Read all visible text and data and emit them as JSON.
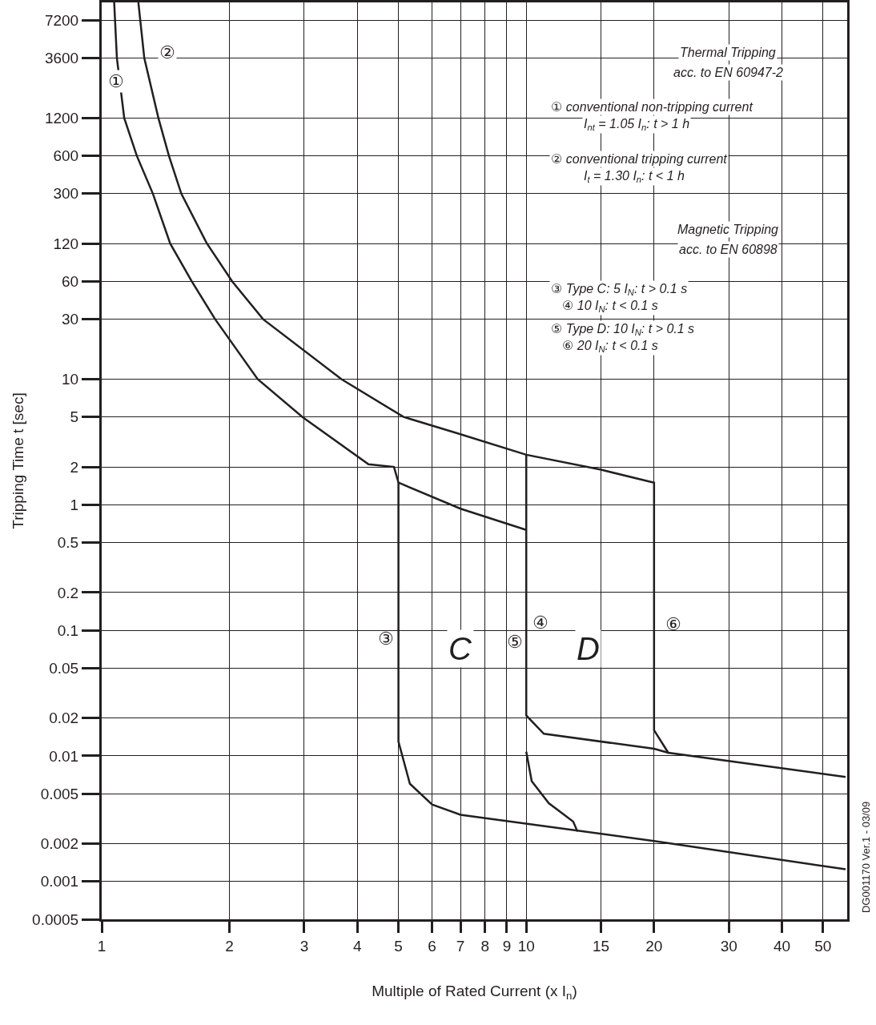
{
  "chart_data": {
    "type": "line",
    "xlabel": "Multiple of Rated Current (x I$_{n}$)",
    "ylabel": "Tripping Time t [sec]",
    "log": "xy",
    "grid": true,
    "marker": "none",
    "line_style": "solid",
    "xlim": [
      1,
      57
    ],
    "xticks": [
      1,
      2,
      3,
      4,
      5,
      6,
      7,
      8,
      9,
      10,
      15,
      20,
      30,
      40,
      50
    ],
    "ylim": [
      0.0005,
      10000
    ],
    "yticks": [
      0.0005,
      0.001,
      0.002,
      0.005,
      0.01,
      0.02,
      0.05,
      0.1,
      0.2,
      0.5,
      1,
      2,
      5,
      10,
      30,
      60,
      120,
      300,
      600,
      1200,
      3600,
      7200
    ],
    "series": [
      {
        "color": "#231f20",
        "x": [
          1.07,
          1.086,
          1.13,
          1.21,
          1.32,
          1.45,
          1.63,
          1.85,
          2.33,
          2.97,
          4.25,
          4.88,
          5,
          7,
          10
        ],
        "values": [
          10000,
          3600,
          1200,
          600,
          300,
          120,
          60,
          30,
          10,
          5,
          2.1,
          2,
          1.5,
          0.93,
          0.63
        ]
      },
      {
        "color": "#231f20",
        "x": [
          1.22,
          1.26,
          1.36,
          1.44,
          1.54,
          1.77,
          2.03,
          2.4,
          3.67,
          5.14,
          6.9,
          10,
          15,
          20,
          20,
          21.6,
          56.5
        ],
        "values": [
          10000,
          3600,
          1200,
          600,
          300,
          120,
          60,
          30,
          10,
          5,
          3.7,
          2.5,
          1.9,
          1.5,
          0.016,
          0.0106,
          0.0068
        ]
      },
      {
        "color": "#231f20",
        "x": [
          5,
          5,
          5.32,
          6,
          7,
          20,
          56.5
        ],
        "values": [
          1.5,
          0.013,
          0.006,
          0.0041,
          0.0034,
          0.0021,
          0.00125
        ]
      },
      {
        "color": "#231f20",
        "x": [
          10,
          10,
          11,
          20,
          21.6
        ],
        "values": [
          2.5,
          0.021,
          0.015,
          0.0114,
          0.0106
        ]
      },
      {
        "color": "#231f20",
        "x": [
          10,
          10.3,
          11.3,
          12.9,
          13.2
        ],
        "values": [
          0.0108,
          0.0063,
          0.0042,
          0.003,
          0.0025
        ]
      }
    ],
    "annotations": [
      "①",
      "②",
      "C",
      "D",
      {
        "text": "③",
        "x": 5,
        "y": 0.1
      },
      {
        "text": "④",
        "x": 10,
        "y": 0.1
      },
      {
        "text": "⑤",
        "x": 10,
        "y": 0.1
      },
      {
        "text": "⑥",
        "x": 20,
        "y": 0.1
      },
      "Thermal Tripping",
      "acc. to EN 60947-2",
      "① conventional non-tripping current",
      "I$_{nt}$ = 1.05 I$_{n}$: t > 1 h",
      "② conventional tripping current",
      "I$_{t}$ = 1.30 I$_{n}$: t < 1 h",
      "Magnetic Tripping",
      "acc. to EN 60898",
      "③ Type C: 5 I$_{N}$: t > 0.1 s",
      "④ 10 I$_{N}$: t < 0.1 s",
      "⑤ Type D: 10 I$_{N}$: t > 0.1 s",
      "⑥ 20 I$_{N}$: t < 0.1 s",
      "DG001170 Ver.1 - 03/09"
    ]
  }
}
